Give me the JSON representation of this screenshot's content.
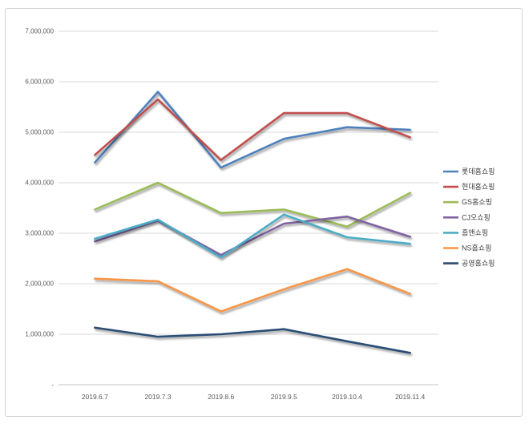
{
  "chart_data": {
    "type": "line",
    "title": "",
    "xlabel": "",
    "ylabel": "",
    "x": [
      "2019.6.7",
      "2019.7.3",
      "2019.8.6",
      "2019.9.5",
      "2019.10.4",
      "2019.11.4"
    ],
    "y_tick_labels": [
      "7,000,000",
      "6,000,000",
      "5,000,000",
      "4,000,000",
      "3,000,000",
      "2,000,000",
      "1,000,000",
      "-"
    ],
    "ylim": [
      0,
      7000000
    ],
    "grid": true,
    "legend_position": "right",
    "series": [
      {
        "name": "롯데홈쇼핑",
        "color": "#4F81BD",
        "values": [
          4400000,
          5800000,
          4300000,
          4870000,
          5100000,
          5050000
        ]
      },
      {
        "name": "현대홈쇼핑",
        "color": "#C0504D",
        "values": [
          4550000,
          5650000,
          4450000,
          5380000,
          5380000,
          4900000
        ]
      },
      {
        "name": "GS홈쇼핑",
        "color": "#9BBB59",
        "values": [
          3470000,
          4000000,
          3400000,
          3470000,
          3130000,
          3800000
        ]
      },
      {
        "name": "CJ오쇼핑",
        "color": "#8064A2",
        "values": [
          2840000,
          3250000,
          2570000,
          3190000,
          3330000,
          2930000
        ]
      },
      {
        "name": "홈앤쇼핑",
        "color": "#4BACC6",
        "values": [
          2890000,
          3270000,
          2520000,
          3370000,
          2920000,
          2790000
        ]
      },
      {
        "name": "NS홈쇼핑",
        "color": "#F79646",
        "values": [
          2100000,
          2050000,
          1450000,
          1890000,
          2290000,
          1800000
        ]
      },
      {
        "name": "공영홈쇼핑",
        "color": "#2C4D75",
        "values": [
          1130000,
          950000,
          1000000,
          1100000,
          860000,
          630000
        ]
      }
    ]
  },
  "style_colors": {
    "grid": "#DADADA",
    "axis_line": "#C6C6C6",
    "tick_text": "#595959",
    "legend_text": "#404040",
    "frame_border": "#D2D2D2"
  }
}
